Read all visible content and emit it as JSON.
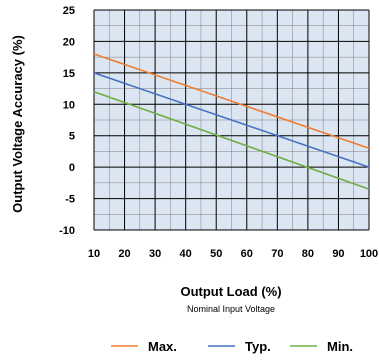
{
  "chart_data": {
    "type": "line",
    "title": "",
    "xlabel": "Output Load (%)",
    "xlabel_sub": "Nominal Input Voltage",
    "ylabel": "Output Voltage Accuracy (%)",
    "xlim": [
      10,
      100
    ],
    "ylim": [
      -10,
      25
    ],
    "xticks": [
      10,
      20,
      30,
      40,
      50,
      60,
      70,
      80,
      90,
      100
    ],
    "yticks": [
      -10,
      -5,
      0,
      5,
      10,
      15,
      20,
      25
    ],
    "grid": true,
    "minor_grid": true,
    "plot_background": "#dce6f2",
    "legend_position": "bottom",
    "series": [
      {
        "name": "Max.",
        "color": "#ed7d31",
        "x": [
          10,
          100
        ],
        "y": [
          18,
          3
        ]
      },
      {
        "name": "Typ.",
        "color": "#4472c4",
        "x": [
          10,
          100
        ],
        "y": [
          15,
          0
        ]
      },
      {
        "name": "Min.",
        "color": "#70ad47",
        "x": [
          10,
          100
        ],
        "y": [
          12,
          -3.5
        ]
      }
    ]
  }
}
